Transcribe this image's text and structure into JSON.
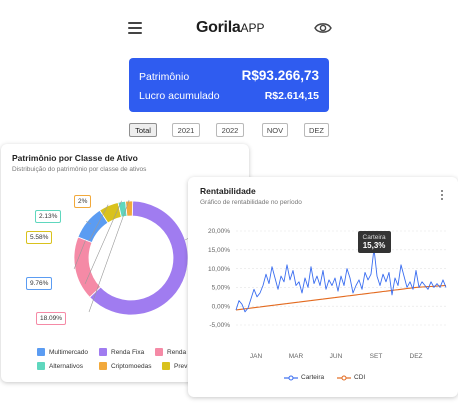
{
  "header": {
    "brand_main": "Gorila",
    "brand_sub": "APP",
    "menu_icon": "hamburger-menu-icon",
    "visibility_icon": "eye-icon"
  },
  "summary": {
    "patrimonio_label": "Patrimônio",
    "patrimonio_value": "R$93.266,73",
    "lucro_label": "Lucro acumulado",
    "lucro_value": "R$2.614,15",
    "background": "#2f5cf0"
  },
  "periods": [
    {
      "label": "Total",
      "active": true
    },
    {
      "label": "2021",
      "active": false
    },
    {
      "label": "2022",
      "active": false
    },
    {
      "label": "NOV",
      "active": false
    },
    {
      "label": "DEZ",
      "active": false
    }
  ],
  "allocation_card": {
    "title": "Patrimônio por Classe de Ativo",
    "subtitle": "Distribuição do patrimônio por classe de ativos",
    "legend": [
      {
        "label": "Multimercado",
        "color": "#5b9cf2"
      },
      {
        "label": "Renda Fixa",
        "color": "#a07cf0"
      },
      {
        "label": "Renda",
        "color": "#f58aa6"
      },
      {
        "label": "Alternativos",
        "color": "#5fd7be"
      },
      {
        "label": "Criptomoedas",
        "color": "#f2a93b"
      },
      {
        "label": "Prev",
        "color": "#d9c21d"
      }
    ]
  },
  "returns_card": {
    "title": "Rentabilidade",
    "subtitle": "Gráfico de rentabilidade no período",
    "more_icon": "more-vertical-icon",
    "tooltip": {
      "series": "Carteira",
      "value": "15,3%"
    }
  },
  "chart_data": [
    {
      "type": "pie",
      "variant": "donut",
      "slices": [
        {
          "label": "Renda Fixa",
          "value": 62.4,
          "color": "#a07cf0"
        },
        {
          "label": "18.09%",
          "value": 18.09,
          "color": "#f58aa6"
        },
        {
          "label": "9.76%",
          "value": 9.76,
          "color": "#5b9cf2"
        },
        {
          "label": "5.58%",
          "value": 5.58,
          "color": "#d9c21d"
        },
        {
          "label": "2.13%",
          "value": 2.13,
          "color": "#5fd7be"
        },
        {
          "label": "2%",
          "value": 2.0,
          "color": "#f2a93b"
        }
      ]
    },
    {
      "type": "line",
      "x_ticks": [
        "JAN",
        "MAR",
        "JUN",
        "SET",
        "DEZ"
      ],
      "y_ticks": [
        "20,00%",
        "15,00%",
        "10,00%",
        "5,00%",
        "0,00%",
        "-5,00%"
      ],
      "y_tick_values": [
        20,
        15,
        10,
        5,
        0,
        -5
      ],
      "ylim": [
        -5,
        20
      ],
      "grid": true,
      "legend_position": "bottom",
      "highlight_index": 46,
      "series": [
        {
          "name": "Carteira",
          "color": "#3a6df0",
          "values": [
            -1.0,
            1.5,
            0.5,
            -1.5,
            -0.5,
            2.0,
            4.5,
            2.5,
            3.5,
            5.5,
            8.5,
            6.0,
            10.5,
            7.5,
            4.5,
            8.0,
            6.5,
            11.0,
            7.0,
            9.5,
            5.5,
            6.5,
            3.5,
            7.5,
            5.0,
            10.5,
            6.0,
            8.0,
            5.5,
            9.5,
            4.5,
            7.0,
            5.5,
            7.5,
            4.0,
            8.0,
            5.5,
            10.0,
            7.5,
            3.5,
            5.5,
            7.0,
            4.5,
            9.0,
            7.0,
            8.5,
            15.3,
            8.0,
            5.5,
            8.5,
            6.5,
            9.0,
            3.0,
            7.5,
            5.5,
            11.0,
            8.0,
            5.0,
            6.5,
            4.5,
            9.5,
            5.0,
            6.5,
            5.5,
            4.5,
            6.5,
            5.0,
            6.0,
            5.0,
            7.0,
            5.0
          ]
        },
        {
          "name": "CDI",
          "color": "#e36a1f",
          "values": [
            -1.0,
            -0.9,
            -0.8,
            -0.7,
            -0.6,
            -0.5,
            -0.4,
            -0.3,
            -0.2,
            -0.1,
            0.0,
            0.1,
            0.2,
            0.3,
            0.4,
            0.5,
            0.6,
            0.7,
            0.8,
            0.9,
            1.0,
            1.1,
            1.2,
            1.3,
            1.4,
            1.5,
            1.6,
            1.7,
            1.8,
            1.9,
            2.0,
            2.1,
            2.2,
            2.3,
            2.4,
            2.5,
            2.6,
            2.7,
            2.8,
            2.9,
            3.0,
            3.1,
            3.2,
            3.3,
            3.4,
            3.5,
            3.6,
            3.7,
            3.8,
            3.9,
            4.0,
            4.1,
            4.2,
            4.3,
            4.4,
            4.5,
            4.6,
            4.7,
            4.8,
            4.9,
            5.0,
            5.05,
            5.1,
            5.15,
            5.2,
            5.25,
            5.3,
            5.35,
            5.4,
            5.45,
            5.5
          ]
        }
      ]
    }
  ]
}
